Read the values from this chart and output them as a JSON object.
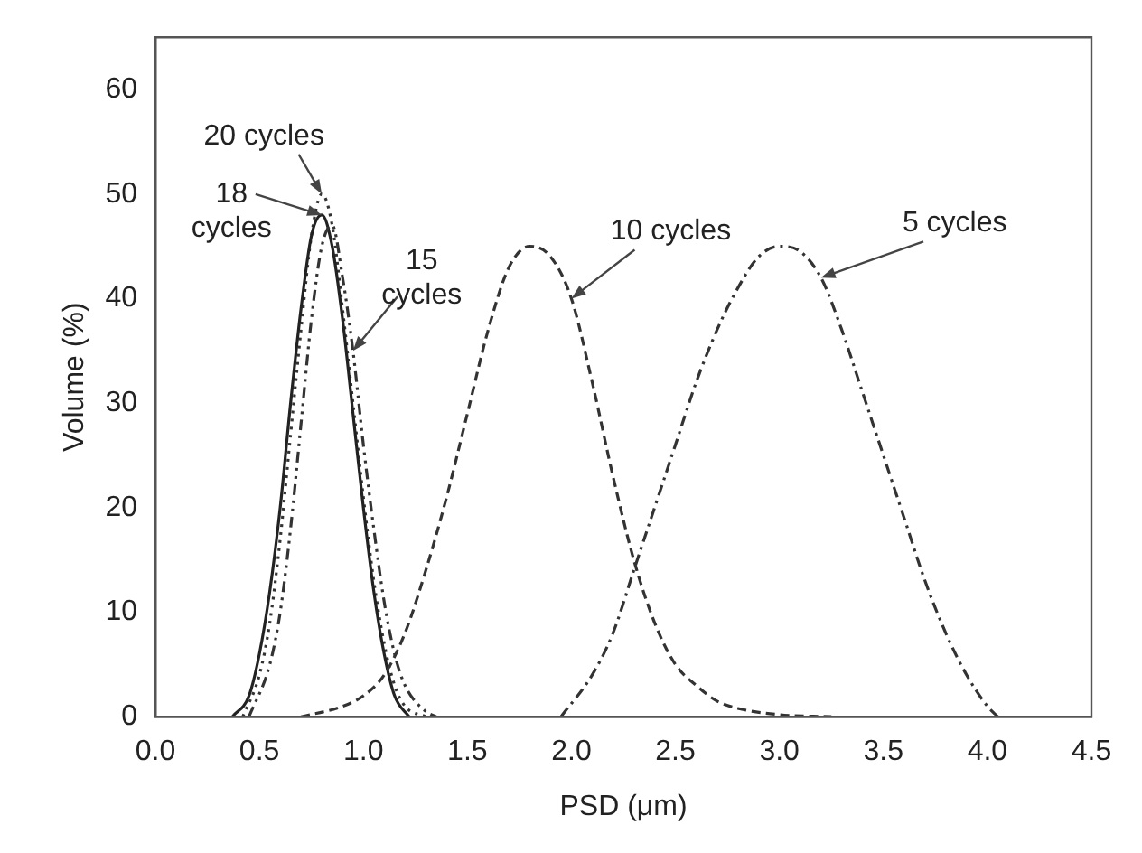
{
  "chart_data": {
    "type": "line",
    "xlabel": "PSD (μm)",
    "ylabel": "Volume (%)",
    "xlim": [
      0,
      4.5
    ],
    "ylim": [
      0,
      65
    ],
    "xticks": [
      {
        "value": 0,
        "label": "0.0"
      },
      {
        "value": 0.5,
        "label": "0.5"
      },
      {
        "value": 1,
        "label": "1.0"
      },
      {
        "value": 1.5,
        "label": "1.5"
      },
      {
        "value": 2,
        "label": "2.0"
      },
      {
        "value": 2.5,
        "label": "2.5"
      },
      {
        "value": 3,
        "label": "3.0"
      },
      {
        "value": 3.5,
        "label": "3.5"
      },
      {
        "value": 4,
        "label": "4.0"
      },
      {
        "value": 4.5,
        "label": "4.5"
      }
    ],
    "yticks": [
      0,
      10,
      20,
      30,
      40,
      50,
      60
    ],
    "grid": false,
    "legend": false,
    "marker": "none",
    "series": [
      {
        "color": "#333333",
        "line_style": "dashdot",
        "x": [
          1.95,
          2.1,
          2.2,
          2.3,
          2.4,
          2.5,
          2.6,
          2.7,
          2.8,
          2.9,
          3.0,
          3.1,
          3.2,
          3.3,
          3.4,
          3.5,
          3.6,
          3.7,
          3.8,
          3.9,
          4.0,
          4.05
        ],
        "values": [
          0,
          4,
          8,
          14,
          20,
          26,
          32,
          37,
          41,
          44,
          45,
          44.5,
          42,
          37,
          31,
          25,
          19,
          13,
          8,
          4,
          1,
          0
        ]
      },
      {
        "color": "#333333",
        "line_style": "dashed",
        "x": [
          0.7,
          0.9,
          1.0,
          1.1,
          1.2,
          1.3,
          1.4,
          1.5,
          1.6,
          1.7,
          1.8,
          1.9,
          2.0,
          2.1,
          2.2,
          2.3,
          2.4,
          2.5,
          2.6,
          2.7,
          2.8,
          3.0,
          3.25
        ],
        "values": [
          0,
          1,
          2,
          4,
          8,
          14,
          21,
          29,
          37,
          43,
          45,
          44,
          40,
          32,
          23,
          15,
          9,
          5,
          3,
          1.5,
          0.8,
          0.2,
          0
        ]
      },
      {
        "color": "#333333",
        "line_style": "dashdotdot",
        "x": [
          0.45,
          0.55,
          0.6,
          0.65,
          0.7,
          0.75,
          0.8,
          0.85,
          0.9,
          0.95,
          1.0,
          1.05,
          1.1,
          1.15,
          1.2,
          1.3,
          1.35
        ],
        "values": [
          0,
          5,
          10,
          18,
          28,
          38,
          45,
          47,
          42,
          35,
          26,
          18,
          11,
          6,
          3,
          0.5,
          0
        ]
      },
      {
        "color": "#222222",
        "line_style": "solid",
        "x": [
          0.37,
          0.45,
          0.5,
          0.55,
          0.6,
          0.65,
          0.7,
          0.75,
          0.8,
          0.85,
          0.9,
          0.95,
          1.0,
          1.05,
          1.1,
          1.15,
          1.22
        ],
        "values": [
          0,
          2,
          6,
          12,
          20,
          30,
          39,
          46,
          48,
          45,
          38,
          29,
          20,
          12,
          6,
          2,
          0
        ]
      },
      {
        "color": "#333333",
        "line_style": "dotted",
        "x": [
          0.42,
          0.5,
          0.55,
          0.6,
          0.65,
          0.7,
          0.75,
          0.8,
          0.85,
          0.9,
          0.95,
          1.0,
          1.05,
          1.1,
          1.15,
          1.2,
          1.3
        ],
        "values": [
          0,
          4,
          9,
          17,
          27,
          37,
          46,
          50,
          47,
          39,
          30,
          21,
          13,
          7,
          3,
          1,
          0
        ]
      }
    ],
    "annotations": [
      {
        "text": "20 cycles",
        "x": 0.8,
        "y": 50
      },
      {
        "text": "18 cycles",
        "x": 0.8,
        "y": 48
      },
      {
        "text": "15 cycles",
        "x": 0.95,
        "y": 35
      },
      {
        "text": "10 cycles",
        "x": 2.0,
        "y": 40
      },
      {
        "text": "5 cycles",
        "x": 3.2,
        "y": 42
      }
    ]
  }
}
